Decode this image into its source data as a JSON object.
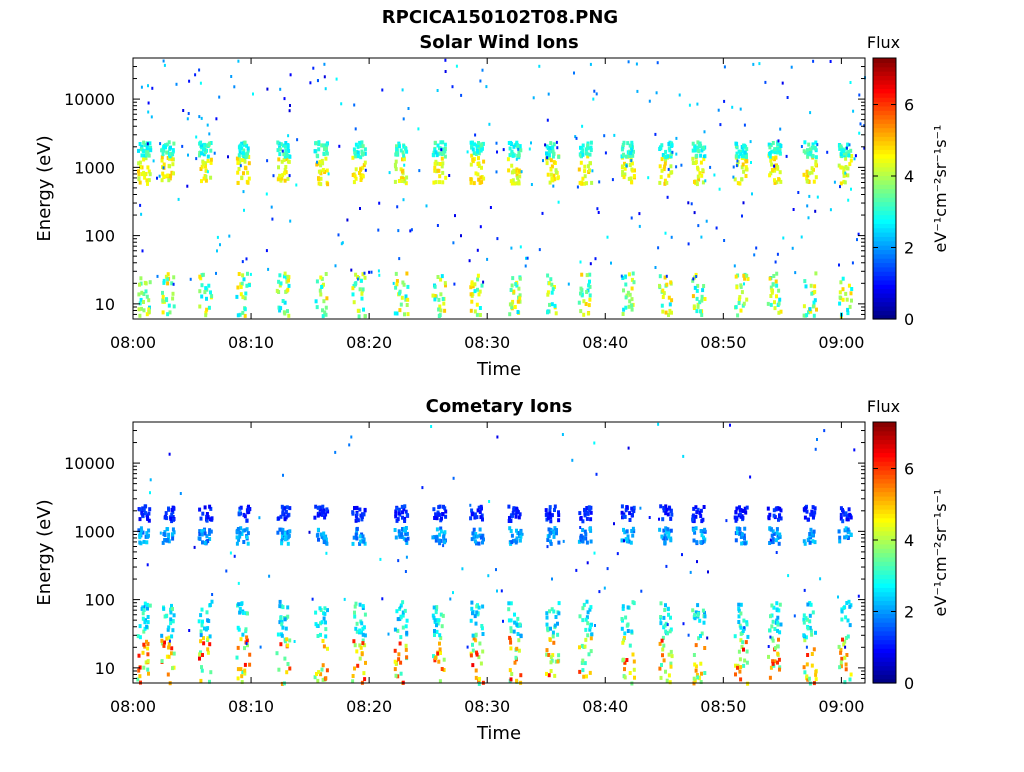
{
  "figure": {
    "title": "RPCICA150102T08.PNG"
  },
  "chart_data": [
    {
      "type": "heatmap",
      "title": "Solar Wind Ions",
      "xlabel": "Time",
      "ylabel": "Energy (eV)",
      "x_ticks": [
        "08:00",
        "08:10",
        "08:20",
        "08:30",
        "08:40",
        "08:50",
        "09:00"
      ],
      "x_range_minutes": [
        0,
        62
      ],
      "y_scale": "log",
      "y_ticks": [
        "10",
        "100",
        "1000",
        "10000"
      ],
      "y_range": [
        6,
        40000
      ],
      "colorbar": {
        "title": "Flux",
        "unit": "eV⁻¹cm⁻²sr⁻¹s⁻¹",
        "ticks": [
          "0",
          "2",
          "4",
          "6"
        ],
        "range": [
          0,
          7.3
        ]
      },
      "bands": [
        {
          "energy_eV": [
            600,
            1600
          ],
          "flux": [
            4,
            5
          ]
        },
        {
          "energy_eV": [
            1500,
            2500
          ],
          "flux": [
            2.5,
            3.5
          ]
        },
        {
          "energy_eV": [
            7,
            30
          ],
          "flux": [
            2.5,
            5
          ]
        }
      ]
    },
    {
      "type": "heatmap",
      "title": "Cometary Ions",
      "xlabel": "Time",
      "ylabel": "Energy (eV)",
      "x_ticks": [
        "08:00",
        "08:10",
        "08:20",
        "08:30",
        "08:40",
        "08:50",
        "09:00"
      ],
      "x_range_minutes": [
        0,
        62
      ],
      "y_scale": "log",
      "y_ticks": [
        "10",
        "100",
        "1000",
        "10000"
      ],
      "y_range": [
        6,
        40000
      ],
      "colorbar": {
        "title": "Flux",
        "unit": "eV⁻¹cm⁻²sr⁻¹s⁻¹",
        "ticks": [
          "0",
          "2",
          "4",
          "6"
        ],
        "range": [
          0,
          7.3
        ]
      },
      "bands": [
        {
          "energy_eV": [
            6,
            30
          ],
          "flux": [
            3,
            6.5
          ]
        },
        {
          "energy_eV": [
            30,
            100
          ],
          "flux": [
            2,
            3.5
          ]
        },
        {
          "energy_eV": [
            700,
            1200
          ],
          "flux": [
            1.5,
            2.5
          ]
        },
        {
          "energy_eV": [
            1500,
            2500
          ],
          "flux": [
            0.8,
            1.5
          ]
        }
      ]
    }
  ]
}
